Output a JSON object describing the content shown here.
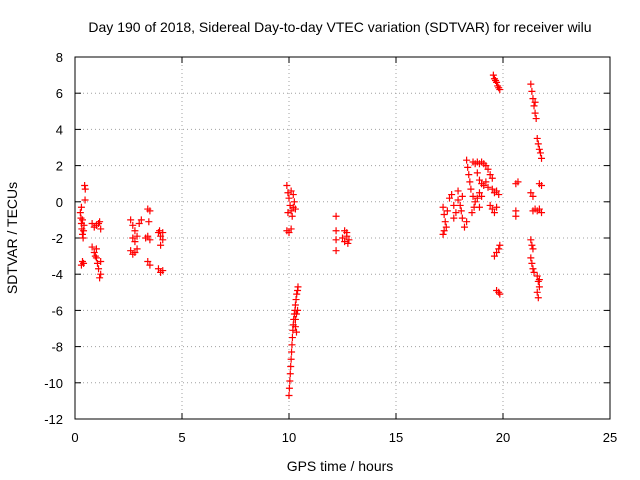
{
  "chart_data": {
    "type": "scatter",
    "title": "Day 190 of 2018, Sidereal Day-to-day VTEC variation (SDTVAR) for receiver wilu",
    "xlabel": "GPS time / hours",
    "ylabel": "SDTVAR / TECUs",
    "xlim": [
      0,
      25
    ],
    "ylim": [
      -12,
      8
    ],
    "xticks": [
      "0",
      "5",
      "10",
      "15",
      "20",
      "25"
    ],
    "yticks": [
      "-12",
      "-10",
      "-8",
      "-6",
      "-4",
      "-2",
      "0",
      "2",
      "4",
      "6",
      "8"
    ],
    "grid": true,
    "marker": "+",
    "color": "#ff0000",
    "series": [
      {
        "points": [
          [
            0.25,
            -0.6
          ],
          [
            0.28,
            -0.9
          ],
          [
            0.3,
            -1.2
          ],
          [
            0.32,
            -1.5
          ],
          [
            0.35,
            -1.8
          ],
          [
            0.38,
            -2.0
          ],
          [
            0.3,
            -0.3
          ],
          [
            0.35,
            -1.0
          ],
          [
            0.3,
            -3.5
          ],
          [
            0.35,
            -3.3
          ],
          [
            0.4,
            -3.4
          ],
          [
            0.4,
            -1.6
          ],
          [
            0.42,
            -1.3
          ],
          [
            0.45,
            0.9
          ],
          [
            0.48,
            0.7
          ],
          [
            0.47,
            0.1
          ],
          [
            0.8,
            -1.2
          ],
          [
            0.9,
            -1.4
          ],
          [
            1.0,
            -1.3
          ],
          [
            1.1,
            -1.2
          ],
          [
            1.2,
            -1.5
          ],
          [
            1.15,
            -1.1
          ],
          [
            0.8,
            -2.5
          ],
          [
            0.9,
            -2.8
          ],
          [
            1.0,
            -3.1
          ],
          [
            1.05,
            -3.4
          ],
          [
            1.1,
            -3.7
          ],
          [
            1.2,
            -4.0
          ],
          [
            1.15,
            -4.2
          ],
          [
            0.95,
            -3.0
          ],
          [
            1.0,
            -2.6
          ],
          [
            1.2,
            -3.3
          ],
          [
            2.6,
            -1.0
          ],
          [
            2.7,
            -1.3
          ],
          [
            2.8,
            -1.6
          ],
          [
            2.9,
            -1.9
          ],
          [
            3.0,
            -1.2
          ],
          [
            3.1,
            -1.0
          ],
          [
            2.7,
            -2.0
          ],
          [
            2.8,
            -2.2
          ],
          [
            2.6,
            -2.7
          ],
          [
            2.7,
            -2.9
          ],
          [
            2.8,
            -2.8
          ],
          [
            2.9,
            -2.6
          ],
          [
            3.4,
            -0.4
          ],
          [
            3.5,
            -0.5
          ],
          [
            3.45,
            -1.1
          ],
          [
            3.4,
            -1.9
          ],
          [
            3.5,
            -2.1
          ],
          [
            3.3,
            -2.0
          ],
          [
            3.4,
            -3.3
          ],
          [
            3.5,
            -3.5
          ],
          [
            3.9,
            -1.7
          ],
          [
            4.0,
            -1.9
          ],
          [
            4.1,
            -2.1
          ],
          [
            4.0,
            -2.4
          ],
          [
            3.95,
            -1.6
          ],
          [
            4.1,
            -1.7
          ],
          [
            3.9,
            -3.7
          ],
          [
            4.0,
            -3.9
          ],
          [
            4.1,
            -3.8
          ],
          [
            9.9,
            0.9
          ],
          [
            9.95,
            0.5
          ],
          [
            10.0,
            0.2
          ],
          [
            10.05,
            -0.2
          ],
          [
            10.1,
            -0.5
          ],
          [
            10.15,
            -0.8
          ],
          [
            10.2,
            -0.3
          ],
          [
            10.25,
            0.0
          ],
          [
            10.3,
            -0.4
          ],
          [
            9.95,
            -0.6
          ],
          [
            10.1,
            0.6
          ],
          [
            10.2,
            0.4
          ],
          [
            9.9,
            -1.6
          ],
          [
            10.0,
            -1.7
          ],
          [
            10.1,
            -1.5
          ],
          [
            10.0,
            -10.7
          ],
          [
            10.02,
            -10.3
          ],
          [
            10.04,
            -9.9
          ],
          [
            10.06,
            -9.5
          ],
          [
            10.08,
            -9.1
          ],
          [
            10.1,
            -8.7
          ],
          [
            10.12,
            -8.3
          ],
          [
            10.14,
            -7.9
          ],
          [
            10.16,
            -7.5
          ],
          [
            10.18,
            -7.1
          ],
          [
            10.2,
            -6.8
          ],
          [
            10.22,
            -6.5
          ],
          [
            10.25,
            -6.2
          ],
          [
            10.28,
            -6.0
          ],
          [
            10.3,
            -5.7
          ],
          [
            10.33,
            -5.4
          ],
          [
            10.36,
            -5.1
          ],
          [
            10.4,
            -4.9
          ],
          [
            10.42,
            -4.7
          ],
          [
            10.3,
            -6.5
          ],
          [
            10.35,
            -6.2
          ],
          [
            10.4,
            -6.0
          ],
          [
            10.3,
            -6.9
          ],
          [
            10.35,
            -7.2
          ],
          [
            12.2,
            -0.8
          ],
          [
            12.2,
            -1.6
          ],
          [
            12.2,
            -2.1
          ],
          [
            12.2,
            -2.7
          ],
          [
            12.5,
            -2.0
          ],
          [
            12.6,
            -2.2
          ],
          [
            12.7,
            -1.9
          ],
          [
            12.75,
            -2.3
          ],
          [
            12.8,
            -2.1
          ],
          [
            12.6,
            -1.6
          ],
          [
            12.7,
            -1.7
          ],
          [
            17.2,
            -0.3
          ],
          [
            17.25,
            -0.7
          ],
          [
            17.3,
            -1.1
          ],
          [
            17.35,
            -1.4
          ],
          [
            17.4,
            -0.5
          ],
          [
            17.2,
            -1.8
          ],
          [
            17.25,
            -1.6
          ],
          [
            17.5,
            0.2
          ],
          [
            17.6,
            0.4
          ],
          [
            17.7,
            -0.2
          ],
          [
            17.8,
            -0.6
          ],
          [
            17.9,
            0.6
          ],
          [
            17.9,
            0.1
          ],
          [
            17.7,
            -0.9
          ],
          [
            18.0,
            -0.2
          ],
          [
            18.05,
            -0.5
          ],
          [
            18.1,
            -0.9
          ],
          [
            18.2,
            -1.4
          ],
          [
            18.3,
            -1.1
          ],
          [
            18.1,
            0.3
          ],
          [
            18.3,
            2.3
          ],
          [
            18.35,
            1.9
          ],
          [
            18.4,
            1.5
          ],
          [
            18.45,
            1.1
          ],
          [
            18.5,
            0.7
          ],
          [
            18.6,
            0.3
          ],
          [
            18.7,
            0.0
          ],
          [
            18.65,
            -0.3
          ],
          [
            18.55,
            -0.6
          ],
          [
            18.6,
            2.2
          ],
          [
            18.7,
            2.1
          ],
          [
            18.8,
            2.2
          ],
          [
            18.9,
            2.1
          ],
          [
            19.0,
            2.2
          ],
          [
            19.1,
            2.1
          ],
          [
            19.2,
            2.0
          ],
          [
            19.3,
            1.8
          ],
          [
            19.4,
            1.5
          ],
          [
            19.5,
            1.3
          ],
          [
            18.8,
            1.6
          ],
          [
            18.9,
            1.2
          ],
          [
            19.0,
            1.0
          ],
          [
            19.1,
            0.9
          ],
          [
            19.2,
            1.1
          ],
          [
            19.3,
            0.8
          ],
          [
            19.5,
            0.7
          ],
          [
            19.6,
            0.5
          ],
          [
            19.7,
            0.6
          ],
          [
            19.8,
            0.4
          ],
          [
            18.8,
            0.2
          ],
          [
            18.9,
            0.5
          ],
          [
            19.0,
            0.3
          ],
          [
            18.9,
            -0.3
          ],
          [
            19.4,
            -0.2
          ],
          [
            19.5,
            -0.4
          ],
          [
            19.6,
            -0.6
          ],
          [
            19.7,
            -0.3
          ],
          [
            19.55,
            7.0
          ],
          [
            19.6,
            6.8
          ],
          [
            19.65,
            6.7
          ],
          [
            19.7,
            6.6
          ],
          [
            19.75,
            6.4
          ],
          [
            19.8,
            6.3
          ],
          [
            19.85,
            6.2
          ],
          [
            19.6,
            -3.0
          ],
          [
            19.7,
            -2.8
          ],
          [
            19.8,
            -2.6
          ],
          [
            19.85,
            -2.4
          ],
          [
            19.7,
            -4.9
          ],
          [
            19.8,
            -5.0
          ],
          [
            19.85,
            -5.1
          ],
          [
            20.6,
            1.0
          ],
          [
            20.7,
            1.1
          ],
          [
            20.6,
            -0.5
          ],
          [
            20.6,
            -0.8
          ],
          [
            21.3,
            6.5
          ],
          [
            21.35,
            6.1
          ],
          [
            21.4,
            5.7
          ],
          [
            21.45,
            5.3
          ],
          [
            21.5,
            4.9
          ],
          [
            21.55,
            4.6
          ],
          [
            21.5,
            5.5
          ],
          [
            21.6,
            3.5
          ],
          [
            21.65,
            3.2
          ],
          [
            21.7,
            2.9
          ],
          [
            21.75,
            2.7
          ],
          [
            21.8,
            2.4
          ],
          [
            21.3,
            0.5
          ],
          [
            21.4,
            0.3
          ],
          [
            21.5,
            -0.4
          ],
          [
            21.6,
            -0.5
          ],
          [
            21.7,
            -0.4
          ],
          [
            21.8,
            -0.6
          ],
          [
            21.4,
            -0.5
          ],
          [
            21.7,
            1.0
          ],
          [
            21.8,
            0.9
          ],
          [
            21.3,
            -2.1
          ],
          [
            21.35,
            -2.4
          ],
          [
            21.4,
            -2.6
          ],
          [
            21.3,
            -3.1
          ],
          [
            21.35,
            -3.4
          ],
          [
            21.4,
            -3.7
          ],
          [
            21.45,
            -3.9
          ],
          [
            21.6,
            -4.1
          ],
          [
            21.65,
            -4.4
          ],
          [
            21.7,
            -4.7
          ],
          [
            21.6,
            -5.0
          ],
          [
            21.65,
            -5.3
          ],
          [
            21.7,
            -4.3
          ]
        ]
      }
    ]
  }
}
